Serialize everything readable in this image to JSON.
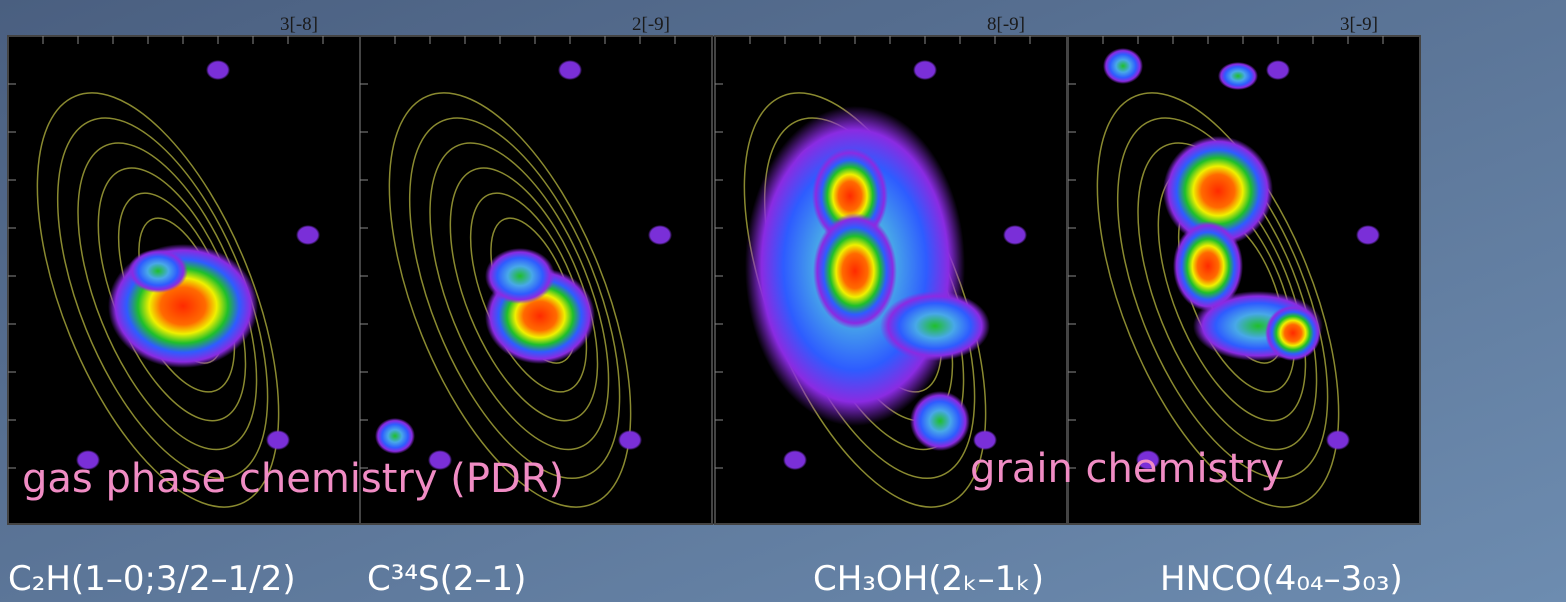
{
  "panels": [
    {
      "scale": "3[-8]",
      "caption": "C₂H(1–0;3/2–1/2)"
    },
    {
      "scale": "2[-9]",
      "caption": "C³⁴S(2–1)"
    },
    {
      "scale": "8[-9]",
      "caption": "CH₃OH(2ₖ–1ₖ)"
    },
    {
      "scale": "3[-9]",
      "caption": "HNCO(4₀₄–3₀₃)"
    }
  ],
  "annotations": [
    "gas phase chemistry (PDR)",
    "grain chemistry"
  ]
}
